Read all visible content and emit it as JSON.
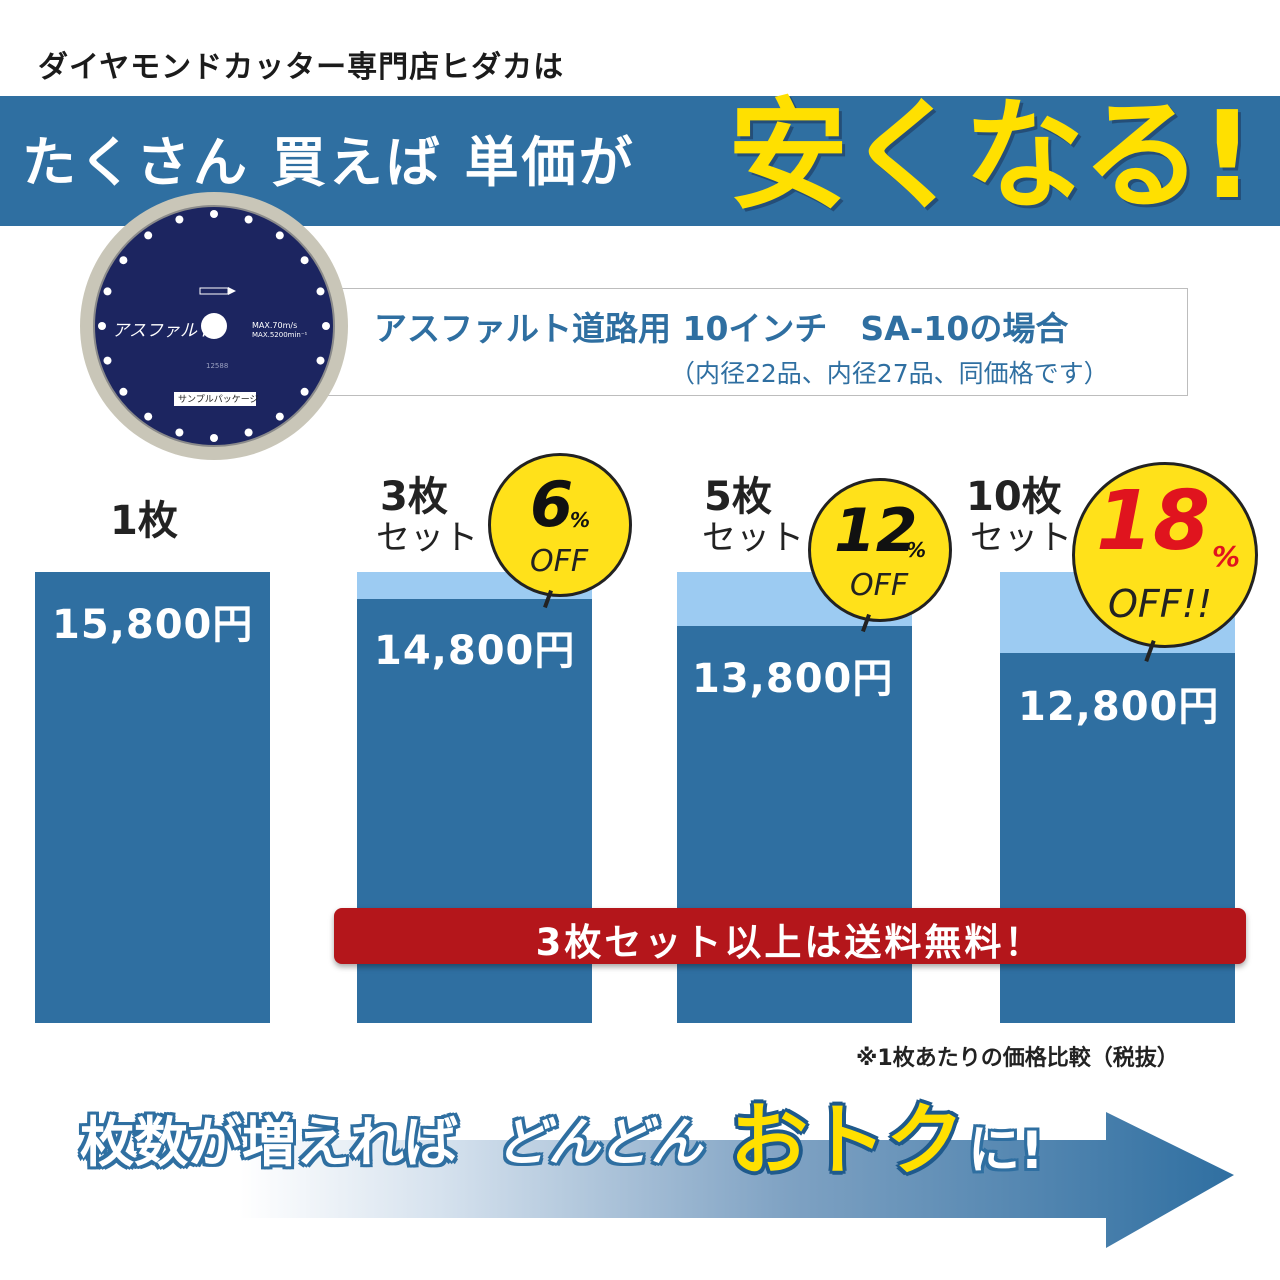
{
  "header": {
    "shop_line": "ダイヤモンドカッター専門店ヒダカは",
    "banner_text": "たくさん 買えば 単価が",
    "banner_big": "安くなる!"
  },
  "product": {
    "blade_label": "アスファルト",
    "blade_spec_1": "MAX.70m/s",
    "blade_spec_2": "MAX.5200min⁻¹",
    "blade_code": "12588",
    "blade_package": "サンプルパッケージ",
    "title": "アスファルト道路用 10インチ　SA-10の場合",
    "subtitle": "（内径22品、内径27品、同価格です）"
  },
  "chart_data": {
    "type": "bar",
    "categories": [
      "1枚",
      "3枚セット",
      "5枚セット",
      "10枚セット"
    ],
    "values": [
      15800,
      14800,
      13800,
      12800
    ],
    "value_labels": [
      "15,800円",
      "14,800円",
      "13,800円",
      "12,800円"
    ],
    "unit": "円",
    "reference_value": 15800,
    "ylim": [
      0,
      15800
    ],
    "discounts": [
      null,
      "6%OFF",
      "12%OFF",
      "18%OFF!!"
    ],
    "grid": false,
    "colors": {
      "bar": "#2f6fa1",
      "saving": "#9ccbf2",
      "badge": "#ffe11a",
      "badge_highlight": "#e0141e"
    }
  },
  "quantities": [
    {
      "count": "1枚",
      "set": ""
    },
    {
      "count": "3枚",
      "set": "セット"
    },
    {
      "count": "5枚",
      "set": "セット"
    },
    {
      "count": "10枚",
      "set": "セット"
    }
  ],
  "badges": [
    {
      "num": "6",
      "pct": "%",
      "off": "OFF"
    },
    {
      "num": "12",
      "pct": "%",
      "off": "OFF"
    },
    {
      "num": "18",
      "pct": "%",
      "off": "OFF!!"
    }
  ],
  "shipping": "3枚セット以上は送料無料！",
  "note": "※1枚あたりの価格比較（税抜）",
  "slogan": {
    "part1": "枚数が増えれば",
    "part2": "どんどん",
    "part3": "おトク",
    "part4": "に!"
  },
  "colors": {
    "primary": "#2f6fa1",
    "accent_yellow": "#ffe000",
    "shipping_red": "#b4161b"
  }
}
